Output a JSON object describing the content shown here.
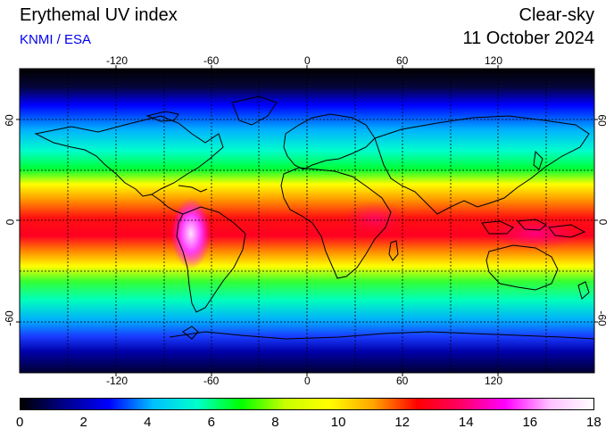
{
  "header": {
    "title": "Erythemal UV index",
    "credit": "KNMI / ESA",
    "mode": "Clear-sky",
    "date": "11 October 2024"
  },
  "map": {
    "projection": "equirectangular",
    "lon_ticks": [
      "-120",
      "-60",
      "0",
      "60",
      "120"
    ],
    "lat_ticks": [
      "60",
      "0",
      "-60"
    ],
    "gridlines": "dashed every 30 degrees",
    "coastlines": "black outlines"
  },
  "colorbar": {
    "labels": [
      "0",
      "2",
      "4",
      "6",
      "8",
      "10",
      "12",
      "14",
      "16",
      "18"
    ],
    "colors": [
      "#000000",
      "#00008b",
      "#0000ff",
      "#00bfff",
      "#00ffcc",
      "#00ff00",
      "#c8ff00",
      "#ffff00",
      "#ffa500",
      "#ff0000",
      "#ff0066",
      "#ff00ff",
      "#ffc0ff",
      "#ffffff"
    ]
  }
}
